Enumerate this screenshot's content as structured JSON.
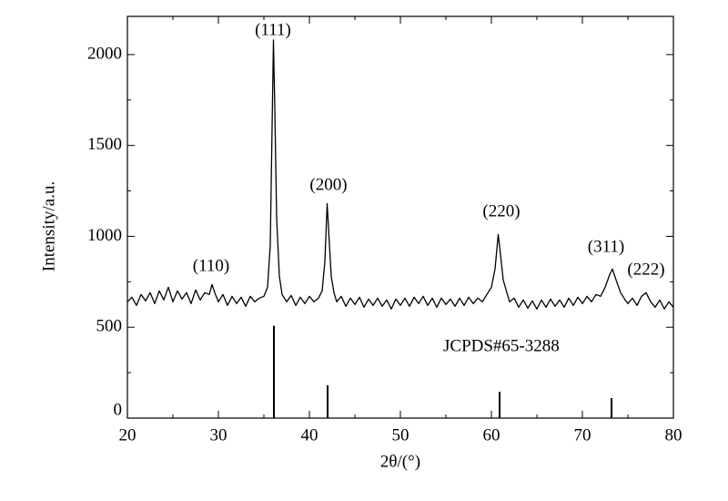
{
  "chart_data": {
    "type": "line",
    "xlabel": "2θ/(°)",
    "ylabel": "Intensity/a.u.",
    "xlim": [
      20,
      80
    ],
    "xticks": [
      20,
      30,
      40,
      50,
      60,
      70,
      80
    ],
    "xminor": [
      25,
      35,
      45,
      55,
      65,
      75
    ],
    "ylim": [
      0,
      2210
    ],
    "yticks": [
      0,
      500,
      1000,
      1500,
      2000
    ],
    "yminor": [
      250,
      750,
      1250,
      1750
    ],
    "series": [
      {
        "color": "#000000",
        "x": [
          20,
          20.5,
          21,
          21.5,
          22,
          22.5,
          23,
          23.5,
          24,
          24.5,
          25,
          25.5,
          26,
          26.5,
          27,
          27.5,
          28,
          28.5,
          29,
          29.3,
          29.6,
          30,
          30.5,
          31,
          31.5,
          32,
          32.5,
          33,
          33.5,
          34,
          34.5,
          35,
          35.4,
          35.7,
          35.9,
          36.05,
          36.2,
          36.4,
          36.7,
          37,
          37.5,
          38,
          38.5,
          39,
          39.5,
          40,
          40.5,
          41,
          41.4,
          41.7,
          41.95,
          42.15,
          42.4,
          42.7,
          43,
          43.5,
          44,
          44.5,
          45,
          45.5,
          46,
          46.5,
          47,
          47.5,
          48,
          48.5,
          49,
          49.5,
          50,
          50.5,
          51,
          51.5,
          52,
          52.5,
          53,
          53.5,
          54,
          54.5,
          55,
          55.5,
          56,
          56.5,
          57,
          57.5,
          58,
          58.5,
          59,
          59.5,
          60,
          60.4,
          60.75,
          61,
          61.3,
          61.7,
          62,
          62.5,
          63,
          63.5,
          64,
          64.5,
          65,
          65.5,
          66,
          66.5,
          67,
          67.5,
          68,
          68.5,
          69,
          69.5,
          70,
          70.5,
          71,
          71.5,
          72,
          72.5,
          73,
          73.3,
          73.7,
          74.2,
          74.7,
          75,
          75.5,
          76,
          76.5,
          77,
          77.5,
          78,
          78.5,
          79,
          79.5,
          80
        ],
        "values": [
          640,
          665,
          620,
          680,
          645,
          690,
          630,
          700,
          650,
          720,
          640,
          700,
          655,
          690,
          630,
          705,
          650,
          690,
          680,
          735,
          690,
          640,
          680,
          620,
          670,
          630,
          665,
          615,
          670,
          640,
          660,
          670,
          720,
          950,
          1600,
          2080,
          1700,
          1100,
          780,
          680,
          640,
          675,
          620,
          665,
          630,
          670,
          640,
          660,
          700,
          860,
          1180,
          1000,
          780,
          690,
          640,
          670,
          615,
          660,
          625,
          665,
          610,
          655,
          620,
          660,
          615,
          650,
          600,
          655,
          620,
          660,
          615,
          665,
          630,
          670,
          620,
          660,
          610,
          660,
          625,
          655,
          615,
          660,
          620,
          665,
          630,
          660,
          640,
          680,
          720,
          820,
          1010,
          900,
          760,
          690,
          640,
          660,
          610,
          650,
          605,
          645,
          600,
          650,
          610,
          655,
          615,
          650,
          610,
          660,
          620,
          665,
          630,
          670,
          640,
          680,
          670,
          720,
          790,
          820,
          760,
          690,
          650,
          630,
          660,
          620,
          670,
          690,
          640,
          610,
          650,
          600,
          640,
          610
        ]
      }
    ],
    "reference": {
      "name": "JCPDS#65-3288",
      "color": "#000000",
      "x": [
        36.1,
        42.0,
        60.9,
        73.2
      ],
      "values": [
        508,
        180,
        145,
        110
      ]
    },
    "annotations": [
      "(110)",
      "(111)",
      "(200)",
      "(220)",
      "(311)",
      "(222)"
    ]
  }
}
